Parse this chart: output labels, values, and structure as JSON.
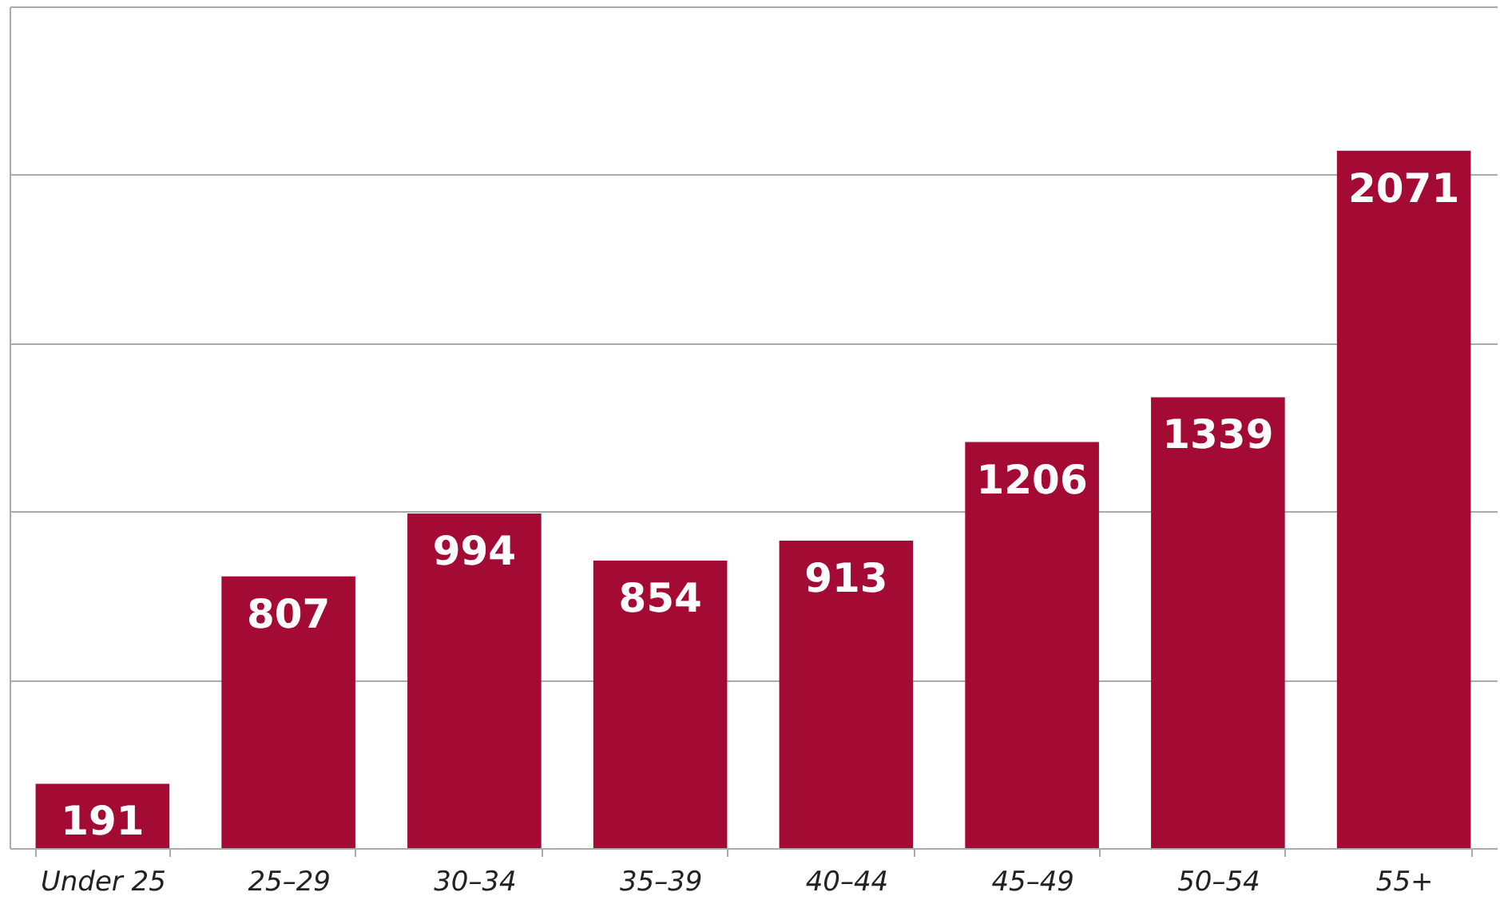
{
  "chart_data": {
    "type": "bar",
    "categories": [
      "Under 25",
      "25–29",
      "30–34",
      "35–39",
      "40–44",
      "45–49",
      "50–54",
      "55+"
    ],
    "values": [
      191,
      807,
      994,
      854,
      913,
      1206,
      1339,
      2071
    ],
    "color": "#a30b34",
    "ylim": [
      0,
      2500
    ],
    "yticks": [
      {
        "value": 0,
        "label": null
      },
      {
        "value": 500,
        "label": null
      },
      {
        "value": 1000,
        "label": null
      },
      {
        "value": 1500,
        "label": null
      },
      {
        "value": 2000,
        "label": null
      },
      {
        "value": 2500,
        "label": null
      }
    ],
    "tick_labels": "x",
    "grid": "y",
    "data_labels": true
  }
}
